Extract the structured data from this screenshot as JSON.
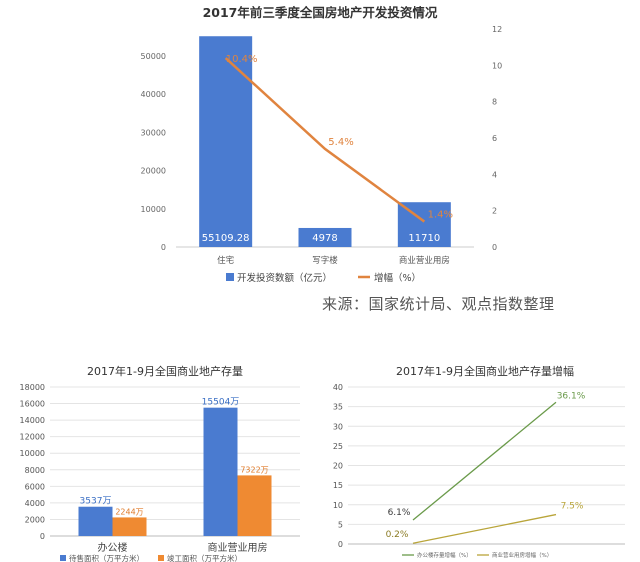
{
  "source_note": "来源：国家统计局、观点指数整理",
  "chart_data": [
    {
      "type": "bar",
      "title": "2017年前三季度全国房地产开发投资情况",
      "categories": [
        "住宅",
        "写字楼",
        "商业营业用房"
      ],
      "series": [
        {
          "name": "开发投资数额（亿元）",
          "type": "bar",
          "axis": "left",
          "values": [
            55109.28,
            4978,
            11710
          ],
          "labels": [
            "55109.28",
            "4978",
            "11710"
          ],
          "color": "#4a7bd0"
        },
        {
          "name": "增幅（%）",
          "type": "line",
          "axis": "right",
          "values": [
            10.4,
            5.4,
            1.4
          ],
          "labels": [
            "10.4%",
            "5.4%",
            "1.4%"
          ],
          "color": "#e0843f"
        }
      ],
      "ylim": [
        0,
        55000
      ],
      "yticks": [
        "0",
        "10000",
        "20000",
        "30000",
        "40000",
        "50000"
      ],
      "y2lim": [
        0,
        12
      ],
      "y2ticks": [
        "0",
        "2",
        "4",
        "6",
        "8",
        "10",
        "12"
      ],
      "legend": "bottom",
      "grid": false
    },
    {
      "type": "bar",
      "title": "2017年1-9月全国商业地产存量",
      "categories": [
        "办公楼",
        "商业营业用房"
      ],
      "series": [
        {
          "name": "待售面积（万平方米）",
          "values": [
            3537,
            15504
          ],
          "labels": [
            "3537万",
            "15504万"
          ],
          "color": "#4a7bd0"
        },
        {
          "name": "竣工面积（万平方米）",
          "values": [
            2244,
            7322
          ],
          "labels": [
            "2244万",
            "7322万"
          ],
          "color": "#ef8a32"
        }
      ],
      "ylim": [
        0,
        18000
      ],
      "yticks": [
        "0",
        "2000",
        "4000",
        "6000",
        "8000",
        "10000",
        "12000",
        "14000",
        "16000",
        "18000"
      ],
      "legend": "bottom",
      "grid": true
    },
    {
      "type": "line",
      "title": "2017年1-9月全国商业地产存量增幅",
      "categories": [
        "",
        ""
      ],
      "series": [
        {
          "name": "办公楼存量增幅（%）",
          "values": [
            6.1,
            36.1
          ],
          "labels": [
            "6.1%",
            "36.1%"
          ],
          "color": "#6a9a4a"
        },
        {
          "name": "商业营业用房增幅（%）",
          "values": [
            0.2,
            7.5
          ],
          "labels": [
            "0.2%",
            "7.5%"
          ],
          "color": "#b9a53a"
        }
      ],
      "ylim": [
        0,
        40
      ],
      "yticks": [
        "0",
        "5",
        "10",
        "15",
        "20",
        "25",
        "30",
        "35",
        "40"
      ],
      "legend": "bottom",
      "grid": true
    }
  ]
}
